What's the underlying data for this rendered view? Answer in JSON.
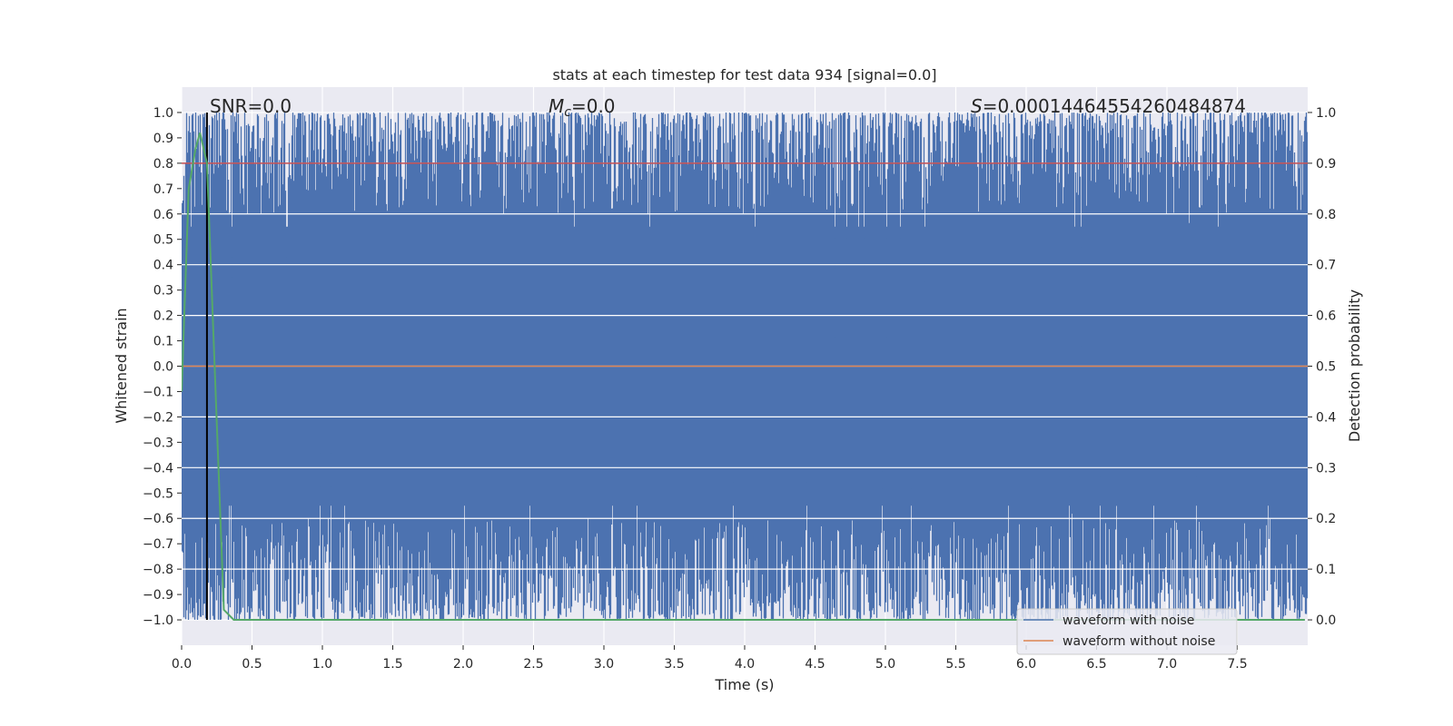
{
  "chart_data": {
    "type": "line",
    "title": "stats at each timestep for test data 934 [signal=0.0]",
    "xlabel": "Time (s)",
    "ylabel": "Whitened strain",
    "y2label": "Detection probability",
    "xlim": [
      0,
      8
    ],
    "ylim": [
      -1.1,
      1.1
    ],
    "y2lim": [
      -0.05,
      1.05
    ],
    "xticks": [
      "0.0",
      "0.5",
      "1.0",
      "1.5",
      "2.0",
      "2.5",
      "3.0",
      "3.5",
      "4.0",
      "4.5",
      "5.0",
      "5.5",
      "6.0",
      "6.5",
      "7.0",
      "7.5"
    ],
    "xtick_values": [
      0,
      0.5,
      1,
      1.5,
      2,
      2.5,
      3,
      3.5,
      4,
      4.5,
      5,
      5.5,
      6,
      6.5,
      7,
      7.5
    ],
    "yticks": [
      "1.0",
      "0.9",
      "0.8",
      "0.7",
      "0.6",
      "0.5",
      "0.4",
      "0.3",
      "0.2",
      "0.1",
      "0.0",
      "−0.1",
      "−0.2",
      "−0.3",
      "−0.4",
      "−0.5",
      "−0.6",
      "−0.7",
      "−0.8",
      "−0.9",
      "−1.0"
    ],
    "ytick_values": [
      1.0,
      0.9,
      0.8,
      0.7,
      0.6,
      0.5,
      0.4,
      0.3,
      0.2,
      0.1,
      0.0,
      -0.1,
      -0.2,
      -0.3,
      -0.4,
      -0.5,
      -0.6,
      -0.7,
      -0.8,
      -0.9,
      -1.0
    ],
    "y2ticks": [
      "1.0",
      "0.9",
      "0.8",
      "0.7",
      "0.6",
      "0.5",
      "0.4",
      "0.3",
      "0.2",
      "0.1",
      "0.0"
    ],
    "y2tick_values": [
      1.0,
      0.9,
      0.8,
      0.7,
      0.6,
      0.5,
      0.4,
      0.3,
      0.2,
      0.1,
      0.0
    ],
    "grid": true,
    "legend_position": "bottom-right",
    "series": [
      {
        "name": "waveform with noise",
        "color": "#4c72b0",
        "axis": "left",
        "description_range": [
          -1.0,
          1.0
        ]
      },
      {
        "name": "waveform without noise",
        "color": "#dd8452",
        "axis": "left",
        "values_constant": 0.0
      },
      {
        "axis": "right",
        "color": "#55a868",
        "x": [
          0.0,
          0.05,
          0.1,
          0.13,
          0.18,
          0.3,
          0.37,
          7.98
        ],
        "values": [
          0.45,
          0.85,
          0.93,
          0.96,
          0.9,
          0.02,
          0.0,
          0.0
        ]
      }
    ],
    "threshold": {
      "axis": "right",
      "value": 0.9,
      "color": "#c44e52"
    },
    "vline": {
      "x": 0.18,
      "color": "#000000"
    },
    "annotations": {
      "snr": "SNR=0.0",
      "mc_symbol": "M",
      "mc_sub": "c",
      "mc_value": "=0.0",
      "s_symbol": "S",
      "s_value": "=0.00014464554260484874"
    }
  },
  "colors": {
    "background": "#eaeaf2",
    "grid": "#ffffff"
  }
}
